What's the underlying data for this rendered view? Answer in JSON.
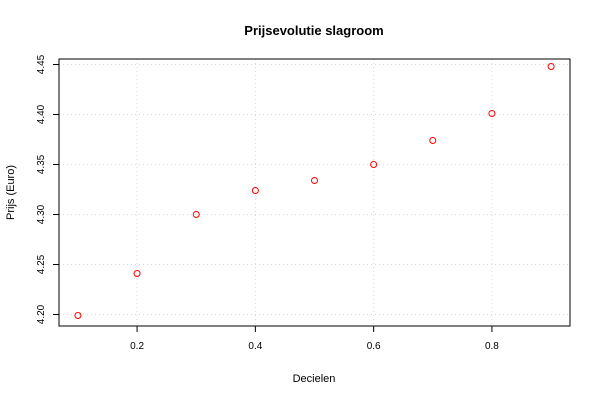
{
  "chart_data": {
    "type": "scatter",
    "title": "Prijsevolutie slagroom",
    "xlabel": "Decielen",
    "ylabel": "Prijs (Euro)",
    "xlim": [
      0.068,
      0.932
    ],
    "ylim": [
      4.1885,
      4.4555
    ],
    "x_ticks": [
      "0.2",
      "0.4",
      "0.6",
      "0.8"
    ],
    "y_ticks": [
      "4.20",
      "4.25",
      "4.30",
      "4.35",
      "4.40",
      "4.45"
    ],
    "grid": true,
    "point_color": "#ff0000",
    "series": [
      {
        "x": [
          0.1,
          0.2,
          0.3,
          0.4,
          0.5,
          0.6,
          0.7,
          0.8,
          0.9
        ],
        "y": [
          4.199,
          4.241,
          4.3,
          4.324,
          4.334,
          4.35,
          4.374,
          4.401,
          4.448
        ]
      }
    ]
  }
}
